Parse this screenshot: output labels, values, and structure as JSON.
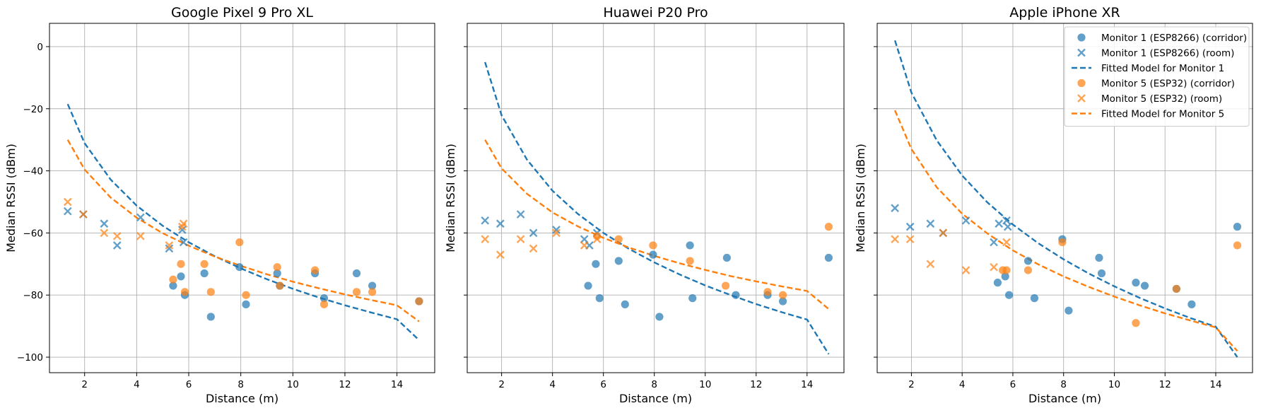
{
  "figure": {
    "shared_y_label": "Median RSSI (dBm)",
    "shared_x_label": "Distance (m)"
  },
  "chart_data": [
    {
      "type": "scatter",
      "title": "Google Pixel 9 Pro XL",
      "xlabel": "Distance (m)",
      "ylabel": "Median RSSI (dBm)",
      "xlim": [
        0.65,
        15.45
      ],
      "ylim": [
        -105,
        7.5
      ],
      "xticks": [
        2,
        4,
        6,
        8,
        10,
        12,
        14
      ],
      "yticks": [
        0,
        -20,
        -40,
        -60,
        -80,
        -100
      ],
      "grid": true,
      "series": [
        {
          "name": "Monitor 1 (ESP8266) (corridor)",
          "marker": "circle",
          "color": "#1f77b4",
          "x": [
            5.4,
            5.7,
            5.85,
            6.6,
            6.85,
            7.95,
            8.2,
            9.4,
            9.5,
            10.85,
            11.2,
            12.45,
            13.05,
            14.85
          ],
          "y": [
            -77,
            -74,
            -80,
            -73,
            -87,
            -71,
            -83,
            -73,
            -77,
            -73,
            -81,
            -73,
            -77,
            -82
          ]
        },
        {
          "name": "Monitor 1 (ESP8266) (room)",
          "marker": "x",
          "color": "#1f77b4",
          "x": [
            1.35,
            1.95,
            2.75,
            3.25,
            4.15,
            5.25,
            5.75,
            5.8
          ],
          "y": [
            -53,
            -54,
            -57,
            -64,
            -55,
            -65,
            -59,
            -63
          ]
        },
        {
          "name": "Fitted Model for Monitor 1",
          "marker": "dashed-line",
          "color": "#1f77b4",
          "x": [
            1.35,
            2,
            3,
            4,
            5,
            6,
            7,
            8,
            9,
            10,
            11,
            12,
            13,
            14,
            14.85
          ],
          "y": [
            -18.5,
            -31.1,
            -42.8,
            -51.2,
            -57.7,
            -63.0,
            -67.5,
            -71.4,
            -74.9,
            -78.0,
            -80.8,
            -83.3,
            -85.6,
            -87.8,
            -94.5
          ]
        },
        {
          "name": "Monitor 5 (ESP32) (corridor)",
          "marker": "circle",
          "color": "#ff7f0e",
          "x": [
            5.4,
            5.7,
            5.85,
            6.6,
            6.85,
            7.95,
            8.2,
            9.4,
            9.5,
            10.85,
            11.2,
            12.45,
            13.05,
            14.85
          ],
          "y": [
            -75,
            -70,
            -79,
            -70,
            -79,
            -63,
            -80,
            -71,
            -77,
            -72,
            -83,
            -79,
            -79,
            -82
          ]
        },
        {
          "name": "Monitor 5 (ESP32) (room)",
          "marker": "x",
          "color": "#ff7f0e",
          "x": [
            1.35,
            1.95,
            2.75,
            3.25,
            4.15,
            5.25,
            5.75,
            5.8
          ],
          "y": [
            -50,
            -54,
            -60,
            -61,
            -61,
            -64,
            -58,
            -57
          ]
        },
        {
          "name": "Fitted Model for Monitor 5",
          "marker": "dashed-line",
          "color": "#ff7f0e",
          "x": [
            1.35,
            2,
            3,
            4,
            5,
            6,
            7,
            8,
            9,
            10,
            11,
            12,
            13,
            14,
            14.85
          ],
          "y": [
            -30,
            -39.6,
            -48.6,
            -55.1,
            -60.1,
            -64.1,
            -67.6,
            -70.6,
            -73.3,
            -75.7,
            -77.8,
            -79.8,
            -81.6,
            -83.3,
            -88.5
          ]
        }
      ]
    },
    {
      "type": "scatter",
      "title": "Huawei P20 Pro",
      "xlabel": "Distance (m)",
      "ylabel": "Median RSSI (dBm)",
      "xlim": [
        0.65,
        15.45
      ],
      "ylim": [
        -105,
        7.5
      ],
      "xticks": [
        2,
        4,
        6,
        8,
        10,
        12,
        14
      ],
      "yticks": [
        0,
        -20,
        -40,
        -60,
        -80,
        -100
      ],
      "grid": true,
      "series": [
        {
          "name": "Monitor 1 (ESP8266) (corridor)",
          "marker": "circle",
          "color": "#1f77b4",
          "x": [
            5.4,
            5.7,
            5.85,
            6.6,
            6.85,
            7.95,
            8.2,
            9.4,
            9.5,
            10.85,
            11.2,
            12.45,
            13.05,
            14.85
          ],
          "y": [
            -77,
            -70,
            -81,
            -69,
            -83,
            -67,
            -87,
            -64,
            -81,
            -68,
            -80,
            -80,
            -82,
            -68
          ]
        },
        {
          "name": "Monitor 1 (ESP8266) (room)",
          "marker": "x",
          "color": "#1f77b4",
          "x": [
            1.35,
            1.95,
            2.75,
            3.25,
            4.15,
            5.25,
            5.45,
            5.75
          ],
          "y": [
            -56,
            -57,
            -54,
            -60,
            -59,
            -62,
            -64,
            -60
          ]
        },
        {
          "name": "Fitted Model for Monitor 1",
          "marker": "dashed-line",
          "color": "#1f77b4",
          "x": [
            1.35,
            2,
            3,
            4,
            5,
            6,
            7,
            8,
            9,
            10,
            11,
            12,
            13,
            14,
            14.85
          ],
          "y": [
            -5,
            -22.1,
            -36.4,
            -46.4,
            -53.9,
            -60.0,
            -65.1,
            -69.5,
            -73.4,
            -76.9,
            -80.0,
            -82.9,
            -85.5,
            -87.9,
            -99
          ]
        },
        {
          "name": "Monitor 5 (ESP32) (corridor)",
          "marker": "circle",
          "color": "#ff7f0e",
          "x": [
            5.75,
            6.6,
            7.95,
            9.4,
            10.8,
            12.45,
            13.05,
            14.85
          ],
          "y": [
            -61,
            -62,
            -64,
            -69,
            -77,
            -79,
            -80,
            -58
          ]
        },
        {
          "name": "Monitor 5 (ESP32) (room)",
          "marker": "x",
          "color": "#ff7f0e",
          "x": [
            1.35,
            1.95,
            2.75,
            3.25,
            4.15,
            5.25,
            5.75
          ],
          "y": [
            -62,
            -67,
            -62,
            -65,
            -60,
            -64,
            -62
          ]
        },
        {
          "name": "Fitted Model for Monitor 5",
          "marker": "dashed-line",
          "color": "#ff7f0e",
          "x": [
            1.35,
            2,
            3,
            4,
            5,
            6,
            7,
            8,
            9,
            10,
            11,
            12,
            13,
            14,
            14.85
          ],
          "y": [
            -30,
            -39.2,
            -47.4,
            -53.4,
            -57.9,
            -61.6,
            -64.7,
            -67.4,
            -69.8,
            -71.9,
            -73.9,
            -75.6,
            -77.2,
            -78.7,
            -84.5
          ]
        }
      ]
    },
    {
      "type": "scatter",
      "title": "Apple iPhone XR",
      "xlabel": "Distance (m)",
      "ylabel": "Median RSSI (dBm)",
      "xlim": [
        0.65,
        15.45
      ],
      "ylim": [
        -105,
        7.5
      ],
      "xticks": [
        2,
        4,
        6,
        8,
        10,
        12,
        14
      ],
      "yticks": [
        0,
        -20,
        -40,
        -60,
        -80,
        -100
      ],
      "grid": true,
      "legend": "top-right",
      "series": [
        {
          "name": "Monitor 1 (ESP8266) (corridor)",
          "marker": "circle",
          "color": "#1f77b4",
          "x": [
            5.4,
            5.7,
            5.85,
            6.6,
            6.85,
            7.95,
            8.2,
            9.4,
            9.5,
            10.85,
            11.2,
            12.45,
            13.05,
            14.85
          ],
          "y": [
            -76,
            -74,
            -80,
            -69,
            -81,
            -62,
            -85,
            -68,
            -73,
            -76,
            -77,
            -78,
            -83,
            -58
          ]
        },
        {
          "name": "Monitor 1 (ESP8266) (room)",
          "marker": "x",
          "color": "#1f77b4",
          "x": [
            1.35,
            1.95,
            2.75,
            3.25,
            4.15,
            5.25,
            5.45,
            5.75,
            5.8
          ],
          "y": [
            -52,
            -58,
            -57,
            -60,
            -56,
            -63,
            -57,
            -56,
            -58
          ]
        },
        {
          "name": "Fitted Model for Monitor 1",
          "marker": "dashed-line",
          "color": "#1f77b4",
          "x": [
            1.35,
            2,
            3,
            4,
            5,
            6,
            7,
            8,
            9,
            10,
            11,
            12,
            13,
            14,
            14.85
          ],
          "y": [
            2,
            -14.8,
            -30.2,
            -41.5,
            -50.2,
            -57.3,
            -63.3,
            -68.5,
            -73.1,
            -77.2,
            -80.9,
            -84.3,
            -87.4,
            -90.2,
            -100
          ]
        },
        {
          "name": "Monitor 5 (ESP32) (corridor)",
          "marker": "circle",
          "color": "#ff7f0e",
          "x": [
            5.6,
            5.75,
            6.6,
            7.95,
            10.85,
            12.45,
            14.85
          ],
          "y": [
            -72,
            -72,
            -72,
            -63,
            -89,
            -78,
            -64
          ]
        },
        {
          "name": "Monitor 5 (ESP32) (room)",
          "marker": "x",
          "color": "#ff7f0e",
          "x": [
            1.35,
            1.95,
            2.75,
            3.25,
            4.15,
            5.25,
            5.75
          ],
          "y": [
            -62,
            -62,
            -70,
            -60,
            -72,
            -71,
            -63
          ]
        },
        {
          "name": "Fitted Model for Monitor 5",
          "marker": "dashed-line",
          "color": "#ff7f0e",
          "x": [
            1.35,
            2,
            3,
            4,
            5,
            6,
            7,
            8,
            9,
            10,
            11,
            12,
            13,
            14,
            14.85
          ],
          "y": [
            -20.5,
            -33.0,
            -45.3,
            -53.8,
            -60.2,
            -65.6,
            -70.1,
            -74.0,
            -77.4,
            -80.5,
            -83.3,
            -85.9,
            -88.2,
            -90.4,
            -98
          ]
        }
      ]
    }
  ]
}
